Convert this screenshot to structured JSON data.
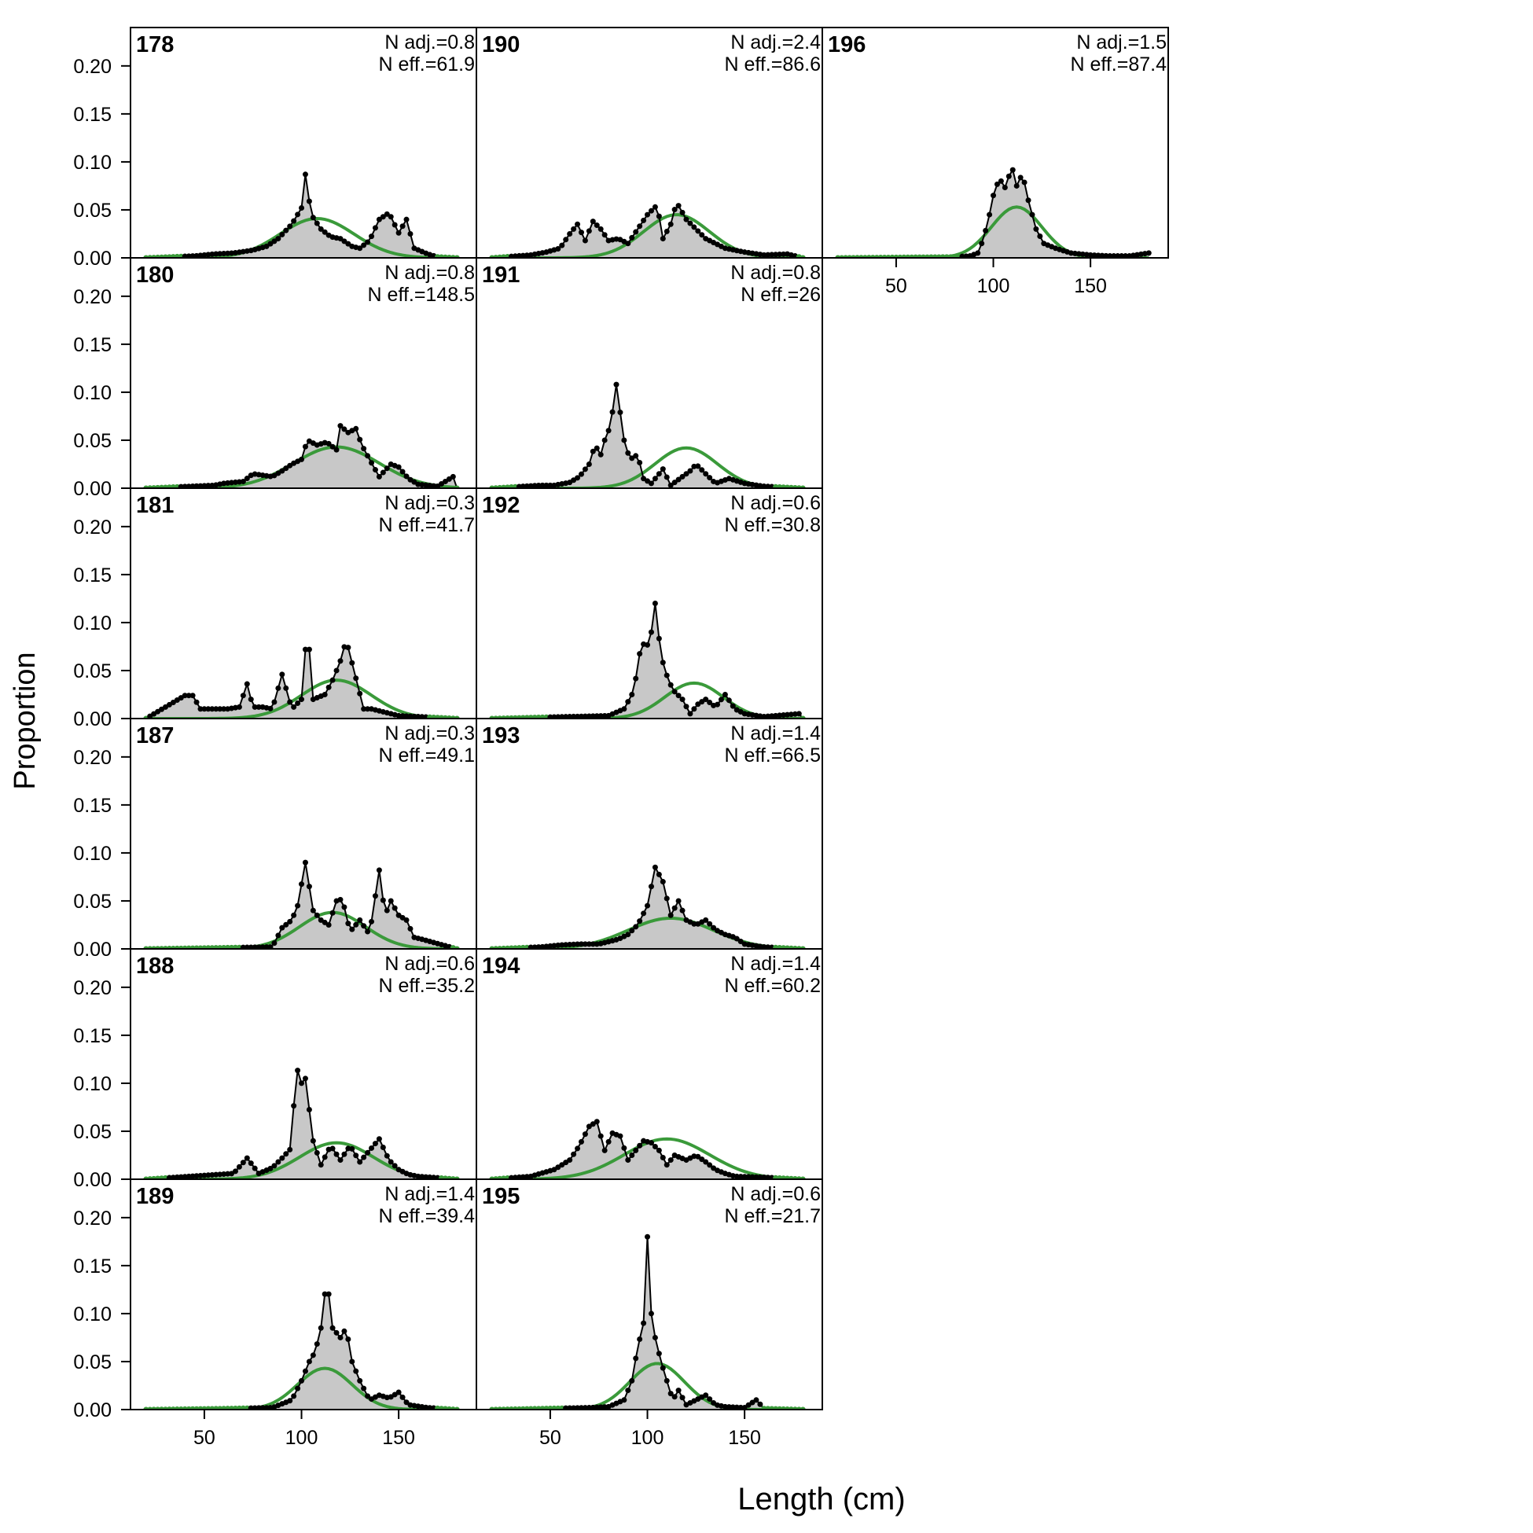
{
  "figure": {
    "xlabel": "Length (cm)",
    "ylabel": "Proportion",
    "xlim": [
      12,
      190
    ],
    "ylim": [
      0,
      0.24
    ],
    "yticks": [
      0,
      0.05,
      0.1,
      0.15,
      0.2
    ],
    "ytick_labels": [
      "0.00",
      "0.05",
      "0.10",
      "0.15",
      "0.20"
    ],
    "xticks": [
      50,
      100,
      150
    ],
    "xtick_labels": [
      "50",
      "100",
      "150"
    ],
    "colors": {
      "observed": "#000000",
      "fill": "#c8c8c8",
      "expected": "#3a9a3a",
      "zero_line": "#b4b4b4",
      "frame": "#000000"
    }
  },
  "chart_data": [
    {
      "type": "area",
      "panel": "178",
      "n_adj": "N adj.=0.8",
      "n_eff": "N eff.=61.9",
      "obs_peaks": [
        [
          20,
          0
        ],
        [
          45,
          0.002
        ],
        [
          55,
          0.004
        ],
        [
          65,
          0.005
        ],
        [
          75,
          0.008
        ],
        [
          82,
          0.012
        ],
        [
          88,
          0.02
        ],
        [
          95,
          0.035
        ],
        [
          100,
          0.052
        ],
        [
          102,
          0.087
        ],
        [
          105,
          0.045
        ],
        [
          110,
          0.03
        ],
        [
          115,
          0.022
        ],
        [
          120,
          0.02
        ],
        [
          126,
          0.012
        ],
        [
          130,
          0.01
        ],
        [
          135,
          0.018
        ],
        [
          140,
          0.04
        ],
        [
          145,
          0.047
        ],
        [
          150,
          0.026
        ],
        [
          154,
          0.04
        ],
        [
          158,
          0.01
        ],
        [
          165,
          0.004
        ],
        [
          170,
          0.001
        ],
        [
          180,
          0
        ]
      ],
      "expected": {
        "mean": 108,
        "sd": 19,
        "peak": 0.041
      }
    },
    {
      "type": "area",
      "panel": "180",
      "n_adj": "N adj.=0.8",
      "n_eff": "N eff.=148.5",
      "obs_peaks": [
        [
          20,
          0
        ],
        [
          55,
          0.003
        ],
        [
          60,
          0.005
        ],
        [
          70,
          0.007
        ],
        [
          75,
          0.015
        ],
        [
          85,
          0.012
        ],
        [
          90,
          0.018
        ],
        [
          95,
          0.025
        ],
        [
          100,
          0.03
        ],
        [
          103,
          0.05
        ],
        [
          108,
          0.045
        ],
        [
          113,
          0.048
        ],
        [
          118,
          0.04
        ],
        [
          120,
          0.065
        ],
        [
          124,
          0.058
        ],
        [
          128,
          0.062
        ],
        [
          131,
          0.045
        ],
        [
          135,
          0.03
        ],
        [
          140,
          0.012
        ],
        [
          146,
          0.025
        ],
        [
          150,
          0.022
        ],
        [
          155,
          0.01
        ],
        [
          160,
          0.004
        ],
        [
          170,
          0.002
        ],
        [
          178,
          0.012
        ],
        [
          180,
          0
        ]
      ],
      "expected": {
        "mean": 118,
        "sd": 22,
        "peak": 0.043
      }
    },
    {
      "type": "area",
      "panel": "181",
      "n_adj": "N adj.=0.3",
      "n_eff": "N eff.=41.7",
      "obs_peaks": [
        [
          20,
          0
        ],
        [
          40,
          0.024
        ],
        [
          44,
          0.024
        ],
        [
          48,
          0.01
        ],
        [
          52,
          0.01
        ],
        [
          58,
          0.01
        ],
        [
          62,
          0.01
        ],
        [
          68,
          0.012
        ],
        [
          72,
          0.036
        ],
        [
          75,
          0.012
        ],
        [
          80,
          0.012
        ],
        [
          85,
          0.01
        ],
        [
          90,
          0.046
        ],
        [
          95,
          0.01
        ],
        [
          100,
          0.02
        ],
        [
          103,
          0.098
        ],
        [
          106,
          0.02
        ],
        [
          112,
          0.025
        ],
        [
          116,
          0.04
        ],
        [
          120,
          0.06
        ],
        [
          123,
          0.082
        ],
        [
          127,
          0.05
        ],
        [
          132,
          0.01
        ],
        [
          136,
          0.01
        ],
        [
          150,
          0.003
        ],
        [
          180,
          0
        ]
      ],
      "expected": {
        "mean": 118,
        "sd": 18,
        "peak": 0.04
      }
    },
    {
      "type": "area",
      "panel": "187",
      "n_adj": "N adj.=0.3",
      "n_eff": "N eff.=49.1",
      "obs_peaks": [
        [
          20,
          0
        ],
        [
          85,
          0.002
        ],
        [
          90,
          0.022
        ],
        [
          95,
          0.03
        ],
        [
          98,
          0.045
        ],
        [
          102,
          0.09
        ],
        [
          106,
          0.04
        ],
        [
          110,
          0.03
        ],
        [
          114,
          0.025
        ],
        [
          118,
          0.05
        ],
        [
          121,
          0.052
        ],
        [
          125,
          0.018
        ],
        [
          130,
          0.03
        ],
        [
          135,
          0.015
        ],
        [
          140,
          0.082
        ],
        [
          143,
          0.035
        ],
        [
          146,
          0.05
        ],
        [
          150,
          0.035
        ],
        [
          154,
          0.03
        ],
        [
          158,
          0.012
        ],
        [
          162,
          0.01
        ],
        [
          180,
          0
        ]
      ],
      "expected": {
        "mean": 116,
        "sd": 17,
        "peak": 0.038
      }
    },
    {
      "type": "area",
      "panel": "188",
      "n_adj": "N adj.=0.6",
      "n_eff": "N eff.=35.2",
      "obs_peaks": [
        [
          20,
          0
        ],
        [
          65,
          0.006
        ],
        [
          72,
          0.022
        ],
        [
          78,
          0.006
        ],
        [
          85,
          0.012
        ],
        [
          90,
          0.022
        ],
        [
          95,
          0.033
        ],
        [
          97,
          0.12
        ],
        [
          100,
          0.1
        ],
        [
          102,
          0.105
        ],
        [
          106,
          0.04
        ],
        [
          110,
          0.015
        ],
        [
          115,
          0.035
        ],
        [
          120,
          0.02
        ],
        [
          125,
          0.035
        ],
        [
          130,
          0.018
        ],
        [
          135,
          0.03
        ],
        [
          140,
          0.042
        ],
        [
          145,
          0.02
        ],
        [
          150,
          0.01
        ],
        [
          155,
          0.005
        ],
        [
          160,
          0.003
        ],
        [
          180,
          0
        ]
      ],
      "expected": {
        "mean": 118,
        "sd": 19,
        "peak": 0.038
      }
    },
    {
      "type": "area",
      "panel": "189",
      "n_adj": "N adj.=1.4",
      "n_eff": "N eff.=39.4",
      "obs_peaks": [
        [
          20,
          0
        ],
        [
          60,
          0.001
        ],
        [
          85,
          0.002
        ],
        [
          95,
          0.01
        ],
        [
          100,
          0.03
        ],
        [
          104,
          0.05
        ],
        [
          107,
          0.06
        ],
        [
          110,
          0.085
        ],
        [
          113,
          0.138
        ],
        [
          116,
          0.085
        ],
        [
          120,
          0.075
        ],
        [
          123,
          0.085
        ],
        [
          126,
          0.05
        ],
        [
          130,
          0.03
        ],
        [
          135,
          0.01
        ],
        [
          140,
          0.015
        ],
        [
          145,
          0.012
        ],
        [
          150,
          0.018
        ],
        [
          155,
          0.005
        ],
        [
          165,
          0.002
        ],
        [
          180,
          0
        ]
      ],
      "expected": {
        "mean": 112,
        "sd": 14,
        "peak": 0.043
      }
    },
    {
      "type": "area",
      "panel": "190",
      "n_adj": "N adj.=2.4",
      "n_eff": "N eff.=86.6",
      "obs_peaks": [
        [
          20,
          0
        ],
        [
          40,
          0.003
        ],
        [
          48,
          0.006
        ],
        [
          55,
          0.01
        ],
        [
          60,
          0.025
        ],
        [
          64,
          0.035
        ],
        [
          68,
          0.018
        ],
        [
          72,
          0.038
        ],
        [
          76,
          0.03
        ],
        [
          80,
          0.018
        ],
        [
          85,
          0.02
        ],
        [
          90,
          0.015
        ],
        [
          95,
          0.03
        ],
        [
          100,
          0.045
        ],
        [
          105,
          0.055
        ],
        [
          108,
          0.02
        ],
        [
          112,
          0.035
        ],
        [
          115,
          0.058
        ],
        [
          120,
          0.04
        ],
        [
          125,
          0.03
        ],
        [
          130,
          0.02
        ],
        [
          140,
          0.01
        ],
        [
          150,
          0.006
        ],
        [
          160,
          0.003
        ],
        [
          172,
          0.004
        ],
        [
          180,
          0
        ]
      ],
      "expected": {
        "mean": 115,
        "sd": 17,
        "peak": 0.045
      }
    },
    {
      "type": "area",
      "panel": "191",
      "n_adj": "N adj.=0.8",
      "n_eff": "N eff.=26",
      "obs_peaks": [
        [
          20,
          0
        ],
        [
          45,
          0.003
        ],
        [
          52,
          0.003
        ],
        [
          60,
          0.006
        ],
        [
          65,
          0.012
        ],
        [
          70,
          0.025
        ],
        [
          73,
          0.045
        ],
        [
          76,
          0.035
        ],
        [
          78,
          0.05
        ],
        [
          81,
          0.065
        ],
        [
          84,
          0.108
        ],
        [
          88,
          0.05
        ],
        [
          91,
          0.03
        ],
        [
          95,
          0.035
        ],
        [
          98,
          0.01
        ],
        [
          102,
          0.005
        ],
        [
          108,
          0.02
        ],
        [
          112,
          0.003
        ],
        [
          118,
          0.012
        ],
        [
          122,
          0.018
        ],
        [
          125,
          0.025
        ],
        [
          130,
          0.015
        ],
        [
          135,
          0.005
        ],
        [
          142,
          0.01
        ],
        [
          150,
          0.005
        ],
        [
          160,
          0.002
        ],
        [
          180,
          0
        ]
      ],
      "expected": {
        "mean": 120,
        "sd": 16,
        "peak": 0.042
      }
    },
    {
      "type": "area",
      "panel": "192",
      "n_adj": "N adj.=0.6",
      "n_eff": "N eff.=30.8",
      "obs_peaks": [
        [
          20,
          0
        ],
        [
          80,
          0.003
        ],
        [
          88,
          0.01
        ],
        [
          92,
          0.025
        ],
        [
          95,
          0.05
        ],
        [
          97,
          0.085
        ],
        [
          99,
          0.07
        ],
        [
          102,
          0.09
        ],
        [
          104,
          0.12
        ],
        [
          107,
          0.065
        ],
        [
          110,
          0.045
        ],
        [
          113,
          0.03
        ],
        [
          118,
          0.02
        ],
        [
          122,
          0.005
        ],
        [
          126,
          0.015
        ],
        [
          130,
          0.02
        ],
        [
          135,
          0.012
        ],
        [
          140,
          0.025
        ],
        [
          145,
          0.01
        ],
        [
          150,
          0.005
        ],
        [
          160,
          0.002
        ],
        [
          178,
          0.005
        ],
        [
          180,
          0
        ]
      ],
      "expected": {
        "mean": 124,
        "sd": 15,
        "peak": 0.037
      }
    },
    {
      "type": "area",
      "panel": "193",
      "n_adj": "N adj.=1.4",
      "n_eff": "N eff.=66.5",
      "obs_peaks": [
        [
          20,
          0
        ],
        [
          45,
          0.002
        ],
        [
          55,
          0.004
        ],
        [
          65,
          0.005
        ],
        [
          75,
          0.005
        ],
        [
          85,
          0.01
        ],
        [
          90,
          0.015
        ],
        [
          95,
          0.025
        ],
        [
          100,
          0.045
        ],
        [
          104,
          0.085
        ],
        [
          108,
          0.07
        ],
        [
          112,
          0.035
        ],
        [
          116,
          0.05
        ],
        [
          120,
          0.03
        ],
        [
          125,
          0.025
        ],
        [
          130,
          0.03
        ],
        [
          135,
          0.02
        ],
        [
          140,
          0.015
        ],
        [
          145,
          0.012
        ],
        [
          150,
          0.005
        ],
        [
          160,
          0.002
        ],
        [
          180,
          0
        ]
      ],
      "expected": {
        "mean": 112,
        "sd": 22,
        "peak": 0.032
      }
    },
    {
      "type": "area",
      "panel": "194",
      "n_adj": "N adj.=1.4",
      "n_eff": "N eff.=60.2",
      "obs_peaks": [
        [
          20,
          0
        ],
        [
          40,
          0.003
        ],
        [
          45,
          0.006
        ],
        [
          52,
          0.01
        ],
        [
          56,
          0.015
        ],
        [
          60,
          0.02
        ],
        [
          65,
          0.035
        ],
        [
          70,
          0.055
        ],
        [
          74,
          0.06
        ],
        [
          78,
          0.03
        ],
        [
          82,
          0.048
        ],
        [
          86,
          0.045
        ],
        [
          90,
          0.02
        ],
        [
          94,
          0.03
        ],
        [
          98,
          0.04
        ],
        [
          102,
          0.038
        ],
        [
          106,
          0.03
        ],
        [
          110,
          0.015
        ],
        [
          114,
          0.025
        ],
        [
          120,
          0.02
        ],
        [
          125,
          0.025
        ],
        [
          130,
          0.018
        ],
        [
          135,
          0.01
        ],
        [
          140,
          0.006
        ],
        [
          145,
          0.003
        ],
        [
          160,
          0.002
        ],
        [
          180,
          0
        ]
      ],
      "expected": {
        "mean": 110,
        "sd": 22,
        "peak": 0.042
      }
    },
    {
      "type": "area",
      "panel": "195",
      "n_adj": "N adj.=0.6",
      "n_eff": "N eff.=21.7",
      "obs_peaks": [
        [
          20,
          0
        ],
        [
          70,
          0.002
        ],
        [
          80,
          0.003
        ],
        [
          88,
          0.01
        ],
        [
          92,
          0.03
        ],
        [
          95,
          0.065
        ],
        [
          98,
          0.09
        ],
        [
          100,
          0.18
        ],
        [
          102,
          0.1
        ],
        [
          104,
          0.075
        ],
        [
          107,
          0.05
        ],
        [
          110,
          0.03
        ],
        [
          113,
          0.01
        ],
        [
          116,
          0.02
        ],
        [
          120,
          0.005
        ],
        [
          125,
          0.01
        ],
        [
          130,
          0.015
        ],
        [
          135,
          0.005
        ],
        [
          140,
          0.003
        ],
        [
          150,
          0.002
        ],
        [
          156,
          0.01
        ],
        [
          160,
          0.001
        ],
        [
          180,
          0
        ]
      ],
      "expected": {
        "mean": 105,
        "sd": 14,
        "peak": 0.048
      }
    },
    {
      "type": "area",
      "panel": "196",
      "n_adj": "N adj.=1.5",
      "n_eff": "N eff.=87.4",
      "obs_peaks": [
        [
          20,
          0
        ],
        [
          80,
          0.001
        ],
        [
          88,
          0.002
        ],
        [
          92,
          0.005
        ],
        [
          95,
          0.02
        ],
        [
          98,
          0.045
        ],
        [
          101,
          0.075
        ],
        [
          104,
          0.08
        ],
        [
          107,
          0.07
        ],
        [
          109,
          0.1
        ],
        [
          112,
          0.075
        ],
        [
          115,
          0.088
        ],
        [
          118,
          0.06
        ],
        [
          122,
          0.03
        ],
        [
          126,
          0.015
        ],
        [
          132,
          0.01
        ],
        [
          140,
          0.005
        ],
        [
          150,
          0.003
        ],
        [
          160,
          0.002
        ],
        [
          170,
          0.002
        ],
        [
          180,
          0.005
        ]
      ],
      "expected": {
        "mean": 112,
        "sd": 13,
        "peak": 0.053
      }
    }
  ]
}
